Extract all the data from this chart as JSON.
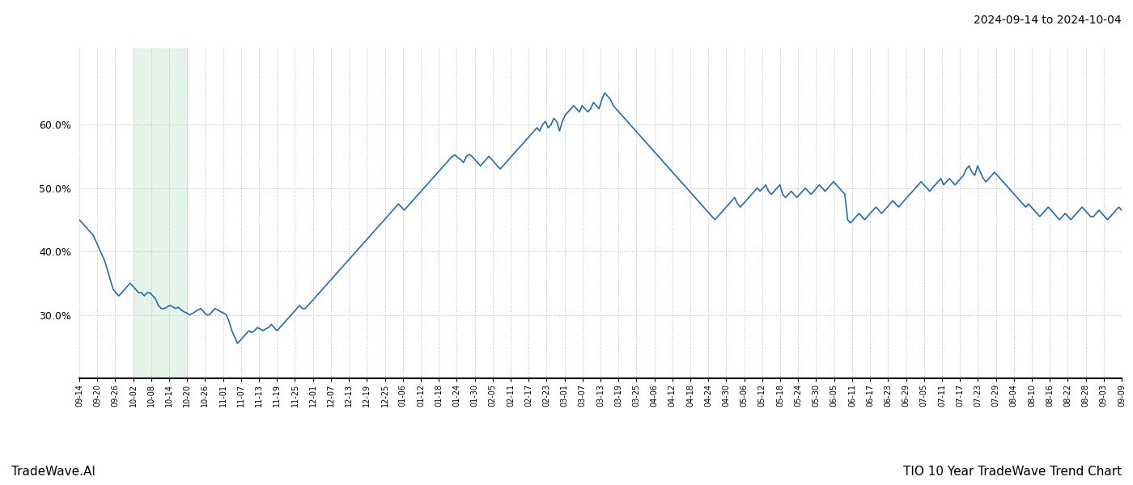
{
  "title_top_right": "2024-09-14 to 2024-10-04",
  "title_bottom_left": "TradeWave.AI",
  "title_bottom_right": "TIO 10 Year TradeWave Trend Chart",
  "line_color": "#1f6cb0",
  "line_width": 1.2,
  "shaded_region_color": "#d4edda",
  "shaded_region_alpha": 0.6,
  "background_color": "#ffffff",
  "grid_color": "#bbbbbb",
  "ylim": [
    20,
    72
  ],
  "yticks": [
    30.0,
    40.0,
    50.0,
    60.0
  ],
  "x_labels": [
    "09-14",
    "09-20",
    "09-26",
    "10-02",
    "10-08",
    "10-14",
    "10-20",
    "10-26",
    "11-01",
    "11-07",
    "11-13",
    "11-19",
    "11-25",
    "12-01",
    "12-07",
    "12-13",
    "12-19",
    "12-25",
    "01-06",
    "01-12",
    "01-18",
    "01-24",
    "01-30",
    "02-05",
    "02-11",
    "02-17",
    "02-23",
    "03-01",
    "03-07",
    "03-13",
    "03-19",
    "03-25",
    "04-06",
    "04-12",
    "04-18",
    "04-24",
    "04-30",
    "05-06",
    "05-12",
    "05-18",
    "05-24",
    "05-30",
    "06-05",
    "06-11",
    "06-17",
    "06-23",
    "06-29",
    "07-05",
    "07-11",
    "07-17",
    "07-23",
    "07-29",
    "08-04",
    "08-10",
    "08-16",
    "08-22",
    "08-28",
    "09-03",
    "09-09"
  ],
  "shaded_x_start_label": "10-02",
  "shaded_x_end_label": "10-20",
  "y_values": [
    45.0,
    44.5,
    44.0,
    43.5,
    43.0,
    42.5,
    41.5,
    40.5,
    39.5,
    38.5,
    37.0,
    35.5,
    34.0,
    33.5,
    33.0,
    33.5,
    34.0,
    34.5,
    35.0,
    34.5,
    34.0,
    33.5,
    33.5,
    33.0,
    33.5,
    33.5,
    33.0,
    32.5,
    31.5,
    31.0,
    31.0,
    31.2,
    31.5,
    31.3,
    31.0,
    31.2,
    30.8,
    30.5,
    30.3,
    30.0,
    30.2,
    30.5,
    30.8,
    31.0,
    30.5,
    30.0,
    30.0,
    30.5,
    31.0,
    30.8,
    30.5,
    30.3,
    30.0,
    29.0,
    27.5,
    26.5,
    25.5,
    26.0,
    26.5,
    27.0,
    27.5,
    27.2,
    27.5,
    28.0,
    27.8,
    27.5,
    27.8,
    28.0,
    28.5,
    28.0,
    27.5,
    28.0,
    28.5,
    29.0,
    29.5,
    30.0,
    30.5,
    31.0,
    31.5,
    31.0,
    31.0,
    31.5,
    32.0,
    32.5,
    33.0,
    33.5,
    34.0,
    34.5,
    35.0,
    35.5,
    36.0,
    36.5,
    37.0,
    37.5,
    38.0,
    38.5,
    39.0,
    39.5,
    40.0,
    40.5,
    41.0,
    41.5,
    42.0,
    42.5,
    43.0,
    43.5,
    44.0,
    44.5,
    45.0,
    45.5,
    46.0,
    46.5,
    47.0,
    47.5,
    47.0,
    46.5,
    47.0,
    47.5,
    48.0,
    48.5,
    49.0,
    49.5,
    50.0,
    50.5,
    51.0,
    51.5,
    52.0,
    52.5,
    53.0,
    53.5,
    54.0,
    54.5,
    55.0,
    55.2,
    54.8,
    54.5,
    54.0,
    55.0,
    55.3,
    55.0,
    54.5,
    54.0,
    53.5,
    54.0,
    54.5,
    55.0,
    54.5,
    54.0,
    53.5,
    53.0,
    53.5,
    54.0,
    54.5,
    55.0,
    55.5,
    56.0,
    56.5,
    57.0,
    57.5,
    58.0,
    58.5,
    59.0,
    59.5,
    59.0,
    60.0,
    60.5,
    59.5,
    60.0,
    61.0,
    60.5,
    59.0,
    60.5,
    61.5,
    62.0,
    62.5,
    63.0,
    62.5,
    62.0,
    63.0,
    62.5,
    62.0,
    62.5,
    63.5,
    63.0,
    62.5,
    64.0,
    65.0,
    64.5,
    64.0,
    63.0,
    62.5,
    62.0,
    61.5,
    61.0,
    60.5,
    60.0,
    59.5,
    59.0,
    58.5,
    58.0,
    57.5,
    57.0,
    56.5,
    56.0,
    55.5,
    55.0,
    54.5,
    54.0,
    53.5,
    53.0,
    52.5,
    52.0,
    51.5,
    51.0,
    50.5,
    50.0,
    49.5,
    49.0,
    48.5,
    48.0,
    47.5,
    47.0,
    46.5,
    46.0,
    45.5,
    45.0,
    45.5,
    46.0,
    46.5,
    47.0,
    47.5,
    48.0,
    48.5,
    47.5,
    47.0,
    47.5,
    48.0,
    48.5,
    49.0,
    49.5,
    50.0,
    49.5,
    50.0,
    50.5,
    49.5,
    49.0,
    49.5,
    50.0,
    50.5,
    49.0,
    48.5,
    49.0,
    49.5,
    49.0,
    48.5,
    49.0,
    49.5,
    50.0,
    49.5,
    49.0,
    49.5,
    50.0,
    50.5,
    50.0,
    49.5,
    50.0,
    50.5,
    51.0,
    50.5,
    50.0,
    49.5,
    49.0,
    45.0,
    44.5,
    45.0,
    45.5,
    46.0,
    45.5,
    45.0,
    45.5,
    46.0,
    46.5,
    47.0,
    46.5,
    46.0,
    46.5,
    47.0,
    47.5,
    48.0,
    47.5,
    47.0,
    47.5,
    48.0,
    48.5,
    49.0,
    49.5,
    50.0,
    50.5,
    51.0,
    50.5,
    50.0,
    49.5,
    50.0,
    50.5,
    51.0,
    51.5,
    50.5,
    51.0,
    51.5,
    51.0,
    50.5,
    51.0,
    51.5,
    52.0,
    53.0,
    53.5,
    52.5,
    52.0,
    53.5,
    52.5,
    51.5,
    51.0,
    51.5,
    52.0,
    52.5,
    52.0,
    51.5,
    51.0,
    50.5,
    50.0,
    49.5,
    49.0,
    48.5,
    48.0,
    47.5,
    47.0,
    47.5,
    47.0,
    46.5,
    46.0,
    45.5,
    46.0,
    46.5,
    47.0,
    46.5,
    46.0,
    45.5,
    45.0,
    45.5,
    46.0,
    45.5,
    45.0,
    45.5,
    46.0,
    46.5,
    47.0,
    46.5,
    46.0,
    45.5,
    45.5,
    46.0,
    46.5,
    46.0,
    45.5,
    45.0,
    45.5,
    46.0,
    46.5,
    47.0,
    46.5
  ]
}
